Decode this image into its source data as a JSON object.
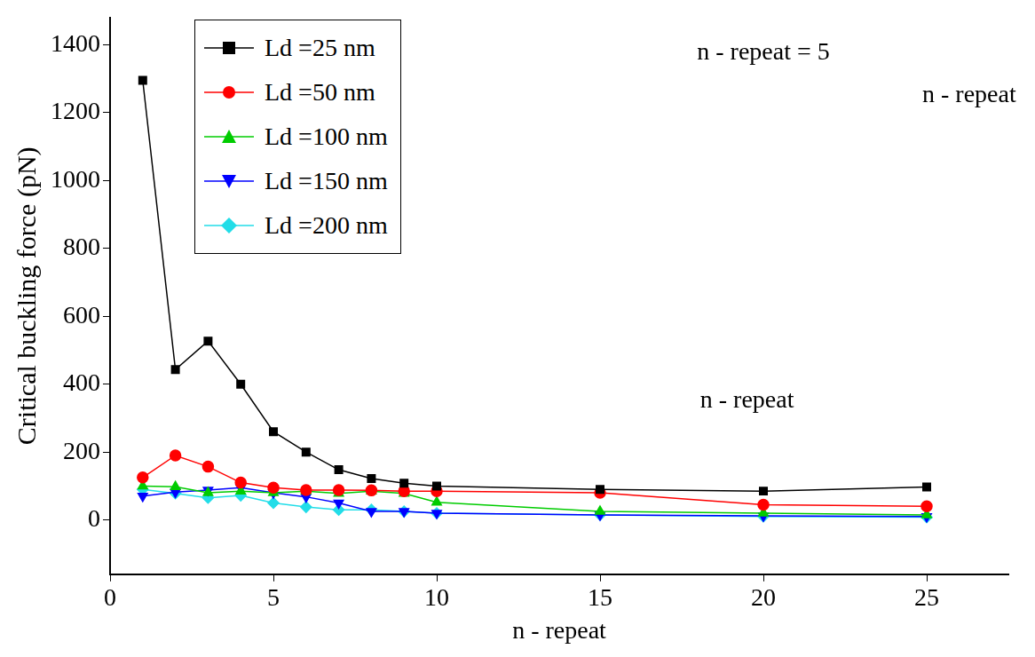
{
  "chart_data": {
    "type": "line",
    "x_label": "n - repeat",
    "y_label": "Critical buckling force (pN)",
    "xlim": [
      0,
      27.5
    ],
    "xticks": [
      0,
      5,
      10,
      15,
      20,
      25
    ],
    "ylim": [
      -160,
      1480
    ],
    "yticks": [
      0,
      200,
      400,
      600,
      800,
      1000,
      1200,
      1400
    ],
    "grid": false,
    "legend": "upper left",
    "x": [
      1,
      2,
      3,
      4,
      5,
      6,
      7,
      8,
      9,
      10,
      15,
      20,
      25
    ],
    "series": [
      {
        "name": "Ld =25 nm",
        "color": "#000000",
        "marker": "square",
        "values": [
          1295,
          443,
          527,
          400,
          260,
          200,
          148,
          122,
          108,
          100,
          90,
          85,
          97
        ]
      },
      {
        "name": "Ld =50 nm",
        "color": "#ff0000",
        "marker": "circle",
        "values": [
          125,
          190,
          157,
          110,
          95,
          88,
          88,
          87,
          85,
          85,
          80,
          45,
          40
        ]
      },
      {
        "name": "Ld =100 nm",
        "color": "#00cc00",
        "marker": "triangle",
        "values": [
          100,
          98,
          80,
          85,
          80,
          85,
          78,
          85,
          78,
          52,
          25,
          20,
          15
        ]
      },
      {
        "name": "Ld =150 nm",
        "color": "#0000ff",
        "marker": "triangle-down",
        "values": [
          70,
          82,
          88,
          95,
          80,
          68,
          50,
          25,
          25,
          20,
          15,
          12,
          10
        ]
      },
      {
        "name": "Ld =200 nm",
        "color": "#22dde8",
        "marker": "diamond",
        "values": [
          90,
          78,
          65,
          72,
          50,
          38,
          30,
          30,
          25,
          20,
          15,
          10,
          8
        ]
      }
    ],
    "annotations": [
      {
        "text": "n - repeat = 5",
        "x": 20,
        "y": 1377
      },
      {
        "text": "n - repeat",
        "x": 26.3,
        "y": 1250
      },
      {
        "text": "n - repeat",
        "x": 19.5,
        "y": 350
      }
    ]
  }
}
